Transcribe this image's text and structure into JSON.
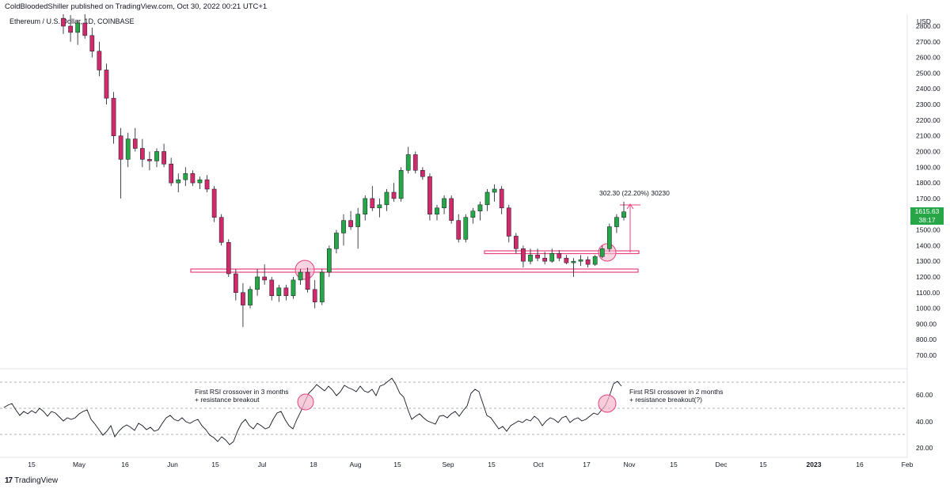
{
  "header": {
    "publisher_line": "ColdBloodedShiller published on TradingView.com, Oct 30, 2022 00:21 UTC+1",
    "symbol_label": "Ethereum / U.S. Dollar, 1D, COINBASE"
  },
  "price_axis": {
    "currency": "USD",
    "ticks": [
      "2800.00",
      "2700.00",
      "2600.00",
      "2500.00",
      "2400.00",
      "2300.00",
      "2200.00",
      "2100.00",
      "2000.00",
      "1900.00",
      "1800.00",
      "1700.00",
      "1600.00",
      "1500.00",
      "1400.00",
      "1300.00",
      "1200.00",
      "1100.00",
      "1000.00",
      "900.00",
      "800.00",
      "700.00"
    ],
    "current_price": "1615.63",
    "countdown": "38:17",
    "current_price_color": "#26a646"
  },
  "rsi_axis": {
    "ticks": [
      "60.00",
      "40.00",
      "20.00"
    ]
  },
  "time_axis": {
    "labels": [
      "15",
      "May",
      "16",
      "Jun",
      "15",
      "Jul",
      "18",
      "Aug",
      "15",
      "Sep",
      "15",
      "Oct",
      "17",
      "Nov",
      "15",
      "Dec",
      "15",
      "2023",
      "16",
      "Feb"
    ]
  },
  "annotations": {
    "measure": "302.30 (22.20%) 30230",
    "rsi_note_1": "First RSI crossover in 3 months\n+ resistance breakout",
    "rsi_note_2": "First RSI crossover in 2 months\n+ resistance breakout(?)"
  },
  "footer": {
    "brand": "TradingView",
    "logo_glyph": "17"
  },
  "colors": {
    "up": "#26a646",
    "down": "#d12a6a",
    "highlight": "#e8417f",
    "circle_fill": "#f7b7cc"
  },
  "chart_data": {
    "type": "candlestick",
    "price_range": [
      700,
      2800
    ],
    "rsi_range": [
      20,
      80
    ],
    "rsi_levels": [
      70,
      50,
      30
    ],
    "support_level": 1240,
    "resistance_level": 1360,
    "candles_ohlc_approx": [
      [
        2850,
        2900,
        2750,
        2800
      ],
      [
        2800,
        2870,
        2700,
        2760
      ],
      [
        2760,
        2840,
        2680,
        2820
      ],
      [
        2820,
        2880,
        2720,
        2740
      ],
      [
        2740,
        2790,
        2600,
        2640
      ],
      [
        2640,
        2700,
        2480,
        2520
      ],
      [
        2520,
        2560,
        2300,
        2340
      ],
      [
        2340,
        2380,
        2050,
        2100
      ],
      [
        2100,
        2150,
        1700,
        1950
      ],
      [
        1950,
        2120,
        1900,
        2080
      ],
      [
        2080,
        2150,
        2000,
        2020
      ],
      [
        2020,
        2080,
        1900,
        1950
      ],
      [
        1950,
        2000,
        1880,
        1940
      ],
      [
        1940,
        2020,
        1900,
        2000
      ],
      [
        2000,
        2050,
        1900,
        1920
      ],
      [
        1920,
        1960,
        1780,
        1800
      ],
      [
        1800,
        1860,
        1740,
        1820
      ],
      [
        1820,
        1900,
        1780,
        1860
      ],
      [
        1860,
        1880,
        1780,
        1800
      ],
      [
        1800,
        1840,
        1760,
        1820
      ],
      [
        1820,
        1850,
        1740,
        1760
      ],
      [
        1760,
        1780,
        1550,
        1580
      ],
      [
        1580,
        1600,
        1400,
        1420
      ],
      [
        1420,
        1440,
        1200,
        1220
      ],
      [
        1220,
        1250,
        1050,
        1100
      ],
      [
        1100,
        1160,
        880,
        1020
      ],
      [
        1020,
        1140,
        1000,
        1120
      ],
      [
        1120,
        1250,
        1080,
        1200
      ],
      [
        1200,
        1280,
        1150,
        1180
      ],
      [
        1180,
        1200,
        1050,
        1080
      ],
      [
        1080,
        1150,
        1040,
        1130
      ],
      [
        1130,
        1150,
        1050,
        1080
      ],
      [
        1080,
        1200,
        1060,
        1180
      ],
      [
        1180,
        1250,
        1150,
        1230
      ],
      [
        1230,
        1260,
        1100,
        1120
      ],
      [
        1120,
        1180,
        1000,
        1040
      ],
      [
        1040,
        1250,
        1020,
        1230
      ],
      [
        1230,
        1400,
        1200,
        1380
      ],
      [
        1380,
        1500,
        1350,
        1480
      ],
      [
        1480,
        1600,
        1400,
        1560
      ],
      [
        1560,
        1620,
        1500,
        1520
      ],
      [
        1520,
        1640,
        1380,
        1600
      ],
      [
        1600,
        1720,
        1560,
        1700
      ],
      [
        1700,
        1780,
        1620,
        1640
      ],
      [
        1640,
        1700,
        1580,
        1660
      ],
      [
        1660,
        1760,
        1620,
        1740
      ],
      [
        1740,
        1800,
        1680,
        1700
      ],
      [
        1700,
        1900,
        1680,
        1880
      ],
      [
        1880,
        2030,
        1860,
        1980
      ],
      [
        1980,
        2000,
        1860,
        1880
      ],
      [
        1880,
        1900,
        1820,
        1840
      ],
      [
        1840,
        1860,
        1560,
        1600
      ],
      [
        1600,
        1660,
        1560,
        1640
      ],
      [
        1640,
        1720,
        1600,
        1700
      ],
      [
        1700,
        1720,
        1540,
        1560
      ],
      [
        1560,
        1600,
        1420,
        1440
      ],
      [
        1440,
        1600,
        1420,
        1580
      ],
      [
        1580,
        1640,
        1540,
        1620
      ],
      [
        1620,
        1680,
        1560,
        1660
      ],
      [
        1660,
        1760,
        1620,
        1740
      ],
      [
        1740,
        1790,
        1680,
        1760
      ],
      [
        1760,
        1780,
        1600,
        1640
      ],
      [
        1640,
        1660,
        1420,
        1460
      ],
      [
        1460,
        1480,
        1350,
        1380
      ],
      [
        1380,
        1400,
        1260,
        1300
      ],
      [
        1300,
        1380,
        1280,
        1340
      ],
      [
        1340,
        1380,
        1300,
        1320
      ],
      [
        1320,
        1360,
        1280,
        1300
      ],
      [
        1300,
        1380,
        1290,
        1350
      ],
      [
        1350,
        1370,
        1300,
        1320
      ],
      [
        1320,
        1340,
        1280,
        1290
      ],
      [
        1290,
        1320,
        1200,
        1300
      ],
      [
        1300,
        1340,
        1270,
        1310
      ],
      [
        1310,
        1330,
        1260,
        1280
      ],
      [
        1280,
        1340,
        1270,
        1330
      ],
      [
        1330,
        1400,
        1320,
        1380
      ],
      [
        1380,
        1540,
        1360,
        1520
      ],
      [
        1520,
        1600,
        1480,
        1580
      ],
      [
        1580,
        1680,
        1560,
        1615
      ]
    ]
  }
}
